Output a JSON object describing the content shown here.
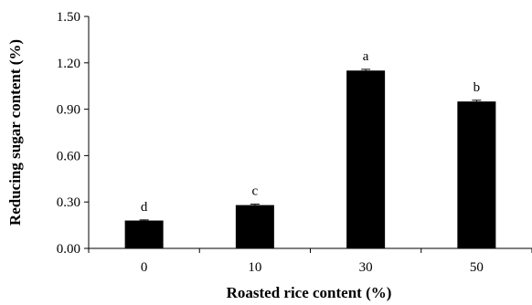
{
  "chart_data": {
    "type": "bar",
    "categories": [
      "0",
      "10",
      "30",
      "50"
    ],
    "values": [
      0.18,
      0.28,
      1.15,
      0.95
    ],
    "errors": [
      0.004,
      0.006,
      0.008,
      0.008
    ],
    "annotations": [
      "d",
      "c",
      "a",
      "b"
    ],
    "xlabel": "Roasted rice content (%)",
    "ylabel": "Reducing sugar content (%)",
    "ylim": [
      0,
      1.5
    ],
    "yticks": [
      "0.00",
      "0.30",
      "0.60",
      "0.90",
      "1.20",
      "1.50"
    ],
    "grid": false,
    "bar_color": "#000000"
  }
}
